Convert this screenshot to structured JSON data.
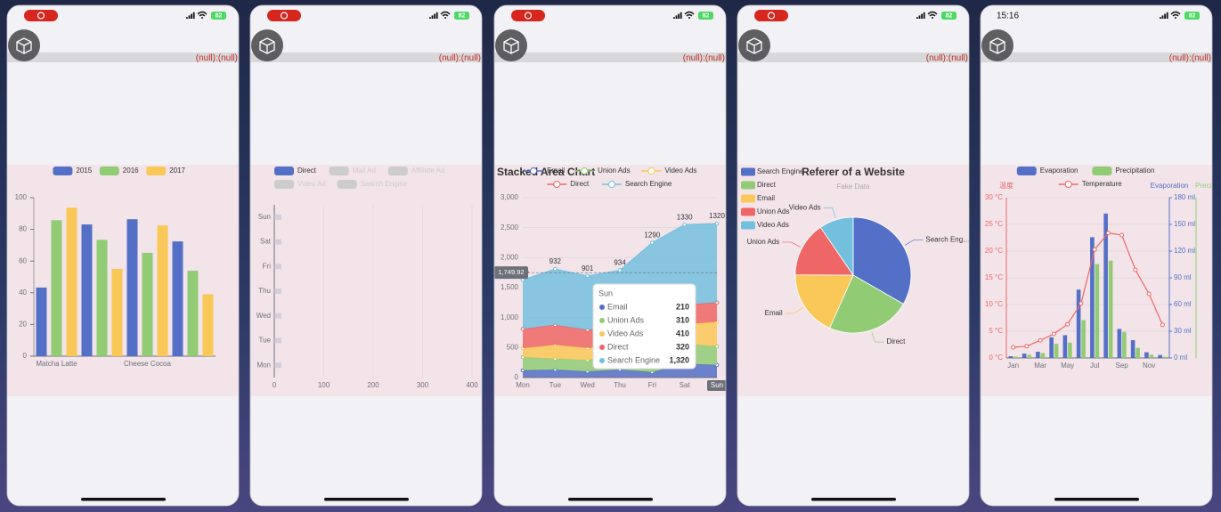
{
  "status_bar": {
    "time": "15:16",
    "battery": "82"
  },
  "debug_label": "(null):(null)",
  "chart_data": [
    {
      "type": "bar",
      "categories": [
        "Matcha Latte",
        null,
        "Cheese Cocoa",
        null
      ],
      "series": [
        {
          "name": "2015",
          "color": "#5470c6",
          "values": [
            43.3,
            83.1,
            86.4,
            72.4
          ]
        },
        {
          "name": "2016",
          "color": "#91cc75",
          "values": [
            85.8,
            73.4,
            65.2,
            53.9
          ]
        },
        {
          "name": "2017",
          "color": "#fac858",
          "values": [
            93.7,
            55.1,
            82.5,
            39.1
          ]
        }
      ],
      "ylim": [
        0,
        100
      ],
      "yticks": [
        0,
        20,
        40,
        60,
        80,
        100
      ],
      "grid": false
    },
    {
      "type": "hbar",
      "categories": [
        "Mon",
        "Tue",
        "Wed",
        "Thu",
        "Fri",
        "Sat",
        "Sun"
      ],
      "series": [
        {
          "name": "Direct",
          "color": "#5470c6",
          "values": [
            0,
            0,
            0,
            0,
            0,
            0,
            0
          ]
        }
      ],
      "inactive_legend": [
        "Mail Ad",
        "Affiliate Ad",
        "Video Ad",
        "Search Engine"
      ],
      "inactive_color": "#cccccc",
      "xlim": [
        0,
        400
      ],
      "xticks": [
        0,
        100,
        200,
        300,
        400
      ],
      "grid": true
    },
    {
      "type": "stacked_area",
      "title": "Stacked Area Chart",
      "categories": [
        "Mon",
        "Tue",
        "Wed",
        "Thu",
        "Fri",
        "Sat",
        "Sun"
      ],
      "series": [
        {
          "name": "Email",
          "color": "#5470c6",
          "values": [
            120,
            132,
            101,
            134,
            90,
            230,
            210
          ]
        },
        {
          "name": "Union Ads",
          "color": "#91cc75",
          "values": [
            220,
            182,
            191,
            234,
            290,
            330,
            310
          ]
        },
        {
          "name": "Video Ads",
          "color": "#fac858",
          "values": [
            150,
            232,
            201,
            154,
            190,
            330,
            410
          ]
        },
        {
          "name": "Direct",
          "color": "#ee6666",
          "values": [
            320,
            332,
            301,
            334,
            390,
            330,
            320
          ]
        },
        {
          "name": "Search Engine",
          "color": "#73c0de",
          "values": [
            820,
            932,
            901,
            934,
            1290,
            1330,
            1320
          ]
        }
      ],
      "ylim": [
        0,
        3000
      ],
      "yticks": [
        0,
        500,
        {
          "value": 1000,
          "label": "1,000"
        },
        {
          "value": 1500,
          "label": "1,500"
        },
        {
          "value": 2000,
          "label": "2,000"
        },
        {
          "value": 2500,
          "label": "2,500"
        },
        {
          "value": 3000,
          "label": "3,000"
        }
      ],
      "grid": true,
      "axis_pointer": {
        "value": 1749.92,
        "label": "1,749.92"
      },
      "tooltip": {
        "title": "Sun",
        "rows": [
          {
            "name": "Email",
            "value": 210
          },
          {
            "name": "Union Ads",
            "value": 310
          },
          {
            "name": "Video Ads",
            "value": 410
          },
          {
            "name": "Direct",
            "value": 320
          },
          {
            "name": "Search Engine",
            "value": {
              "value": 1320,
              "label": "1,320"
            }
          }
        ]
      }
    },
    {
      "type": "pie",
      "title": "Referer of a Website",
      "subtitle": "Fake Data",
      "categories": [
        "Search Engine",
        "Direct",
        "Email",
        "Union Ads",
        "Video Ads"
      ],
      "values": [
        1048,
        735,
        580,
        484,
        300
      ],
      "colors": [
        "#5470c6",
        "#91cc75",
        "#fac858",
        "#ee6666",
        "#73c0de"
      ],
      "slice_labels": [
        "Search Eng…",
        "Direct",
        "Email",
        "Union Ads",
        "Video Ads"
      ]
    },
    {
      "type": "bar_line",
      "categories": [
        "Jan",
        null,
        "Mar",
        null,
        "May",
        null,
        "Jul",
        null,
        "Sep",
        null,
        "Nov",
        null
      ],
      "series": [
        {
          "name": "Evaporation",
          "type": "bar",
          "axis": "y2",
          "color": "#5470c6",
          "values": [
            2.0,
            4.9,
            7.0,
            23.2,
            25.6,
            76.7,
            135.6,
            162.2,
            32.6,
            20.0,
            6.4,
            3.3
          ]
        },
        {
          "name": "Precipitation",
          "type": "bar",
          "axis": "y3",
          "color": "#91cc75",
          "values": [
            2.6,
            5.9,
            9.0,
            26.4,
            28.7,
            70.7,
            175.6,
            182.2,
            48.7,
            18.8,
            6.0,
            2.3
          ]
        },
        {
          "name": "Temperature",
          "type": "line",
          "axis": "y",
          "color": "#ee6666",
          "values": [
            2.0,
            2.2,
            3.3,
            4.5,
            6.3,
            10.2,
            20.3,
            23.4,
            23.0,
            16.5,
            12.0,
            6.2
          ]
        }
      ],
      "ylabel": "温度",
      "y2label": "Evaporation",
      "y3label": "Precipitation",
      "ylim": [
        0,
        30
      ],
      "yticks": [
        {
          "value": 0,
          "label": "0 °C"
        },
        {
          "value": 5,
          "label": "5 °C"
        },
        {
          "value": 10,
          "label": "10 °C"
        },
        {
          "value": 15,
          "label": "15 °C"
        },
        {
          "value": 20,
          "label": "20 °C"
        },
        {
          "value": 25,
          "label": "25 °C"
        },
        {
          "value": 30,
          "label": "30 °C"
        }
      ],
      "y2lim": [
        0,
        180
      ],
      "y2ticks": [
        {
          "value": 0,
          "label": "0 ml"
        },
        {
          "value": 30,
          "label": "30 ml"
        },
        {
          "value": 60,
          "label": "60 ml"
        },
        {
          "value": 90,
          "label": "90 ml"
        },
        {
          "value": 120,
          "label": "120 ml"
        },
        {
          "value": 150,
          "label": "150 ml"
        },
        {
          "value": 180,
          "label": "180 ml"
        }
      ],
      "y3lim": [
        0,
        300
      ],
      "grid": true
    }
  ]
}
